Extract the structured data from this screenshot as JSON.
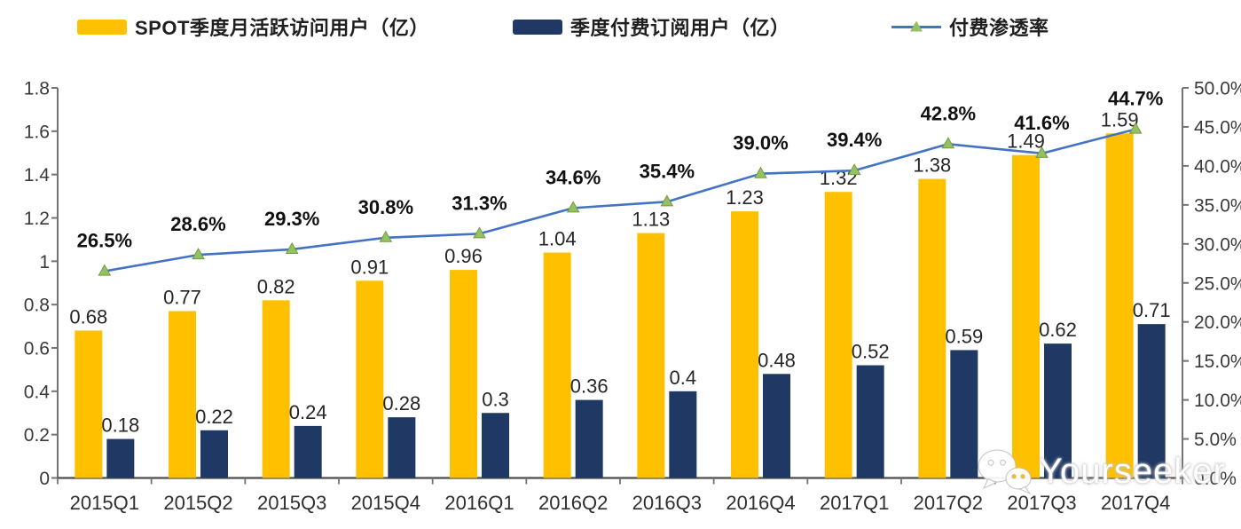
{
  "legend": {
    "items": [
      {
        "key": "mau",
        "label": "SPOT季度月活跃访问用户（亿）",
        "swatch": "bar",
        "color": "#FFC000"
      },
      {
        "key": "subs",
        "label": "季度付费订阅用户（亿）",
        "swatch": "bar",
        "color": "#1F3864"
      },
      {
        "key": "penetration",
        "label": "付费渗透率",
        "swatch": "line-triangle",
        "line_color": "#4472C4",
        "marker_color": "#97BF63"
      }
    ]
  },
  "chart_data": {
    "type": "combo",
    "categories": [
      "2015Q1",
      "2015Q2",
      "2015Q3",
      "2015Q4",
      "2016Q1",
      "2016Q2",
      "2016Q3",
      "2016Q4",
      "2017Q1",
      "2017Q2",
      "2017Q3",
      "2017Q4"
    ],
    "series": [
      {
        "key": "mau",
        "name": "SPOT季度月活跃访问用户（亿）",
        "kind": "bar",
        "axis": "left",
        "color": "#FFC000",
        "values": [
          0.68,
          0.77,
          0.82,
          0.91,
          0.96,
          1.04,
          1.13,
          1.23,
          1.32,
          1.38,
          1.49,
          1.59
        ],
        "labels": [
          "0.68",
          "0.77",
          "0.82",
          "0.91",
          "0.96",
          "1.04",
          "1.13",
          "1.23",
          "1.32",
          "1.38",
          "1.49",
          "1.59"
        ]
      },
      {
        "key": "subs",
        "name": "季度付费订阅用户（亿）",
        "kind": "bar",
        "axis": "left",
        "color": "#1F3864",
        "values": [
          0.18,
          0.22,
          0.24,
          0.28,
          0.3,
          0.36,
          0.4,
          0.48,
          0.52,
          0.59,
          0.62,
          0.71
        ],
        "labels": [
          "0.18",
          "0.22",
          "0.24",
          "0.28",
          "0.3",
          "0.36",
          "0.4",
          "0.48",
          "0.52",
          "0.59",
          "0.62",
          "0.71"
        ]
      },
      {
        "key": "penetration",
        "name": "付费渗透率",
        "kind": "line",
        "axis": "right",
        "color": "#4472C4",
        "marker": "triangle",
        "marker_color": "#97BF63",
        "marker_edge_color": "#6E9E3F",
        "values": [
          26.5,
          28.6,
          29.3,
          30.8,
          31.3,
          34.6,
          35.4,
          39.0,
          39.4,
          42.8,
          41.6,
          44.7
        ],
        "labels": [
          "26.5%",
          "28.6%",
          "29.3%",
          "30.8%",
          "31.3%",
          "34.6%",
          "35.4%",
          "39.0%",
          "39.4%",
          "42.8%",
          "41.6%",
          "44.7%"
        ]
      }
    ],
    "left_axis": {
      "min": 0,
      "max": 1.8,
      "step": 0.2,
      "tick_labels": [
        "0",
        "0.2",
        "0.4",
        "0.6",
        "0.8",
        "1",
        "1.2",
        "1.4",
        "1.6",
        "1.8"
      ]
    },
    "right_axis": {
      "min": 0,
      "max": 50,
      "step": 5,
      "tick_labels": [
        "0.0%",
        "5.0%",
        "10.0%",
        "15.0%",
        "20.0%",
        "25.0%",
        "30.0%",
        "35.0%",
        "40.0%",
        "45.0%",
        "50.0%"
      ]
    },
    "grid": false,
    "legend_position": "top",
    "style": {
      "axis_color": "#737373",
      "baseline_color": "#4D4D4D",
      "tick_label_color": "#3A3A3A",
      "category_label_color": "#303030",
      "value_label_color": "#262626",
      "pct_label_color": "#111111"
    }
  },
  "watermark": {
    "text": "Yourseeker",
    "icon": "wechat-icon"
  }
}
